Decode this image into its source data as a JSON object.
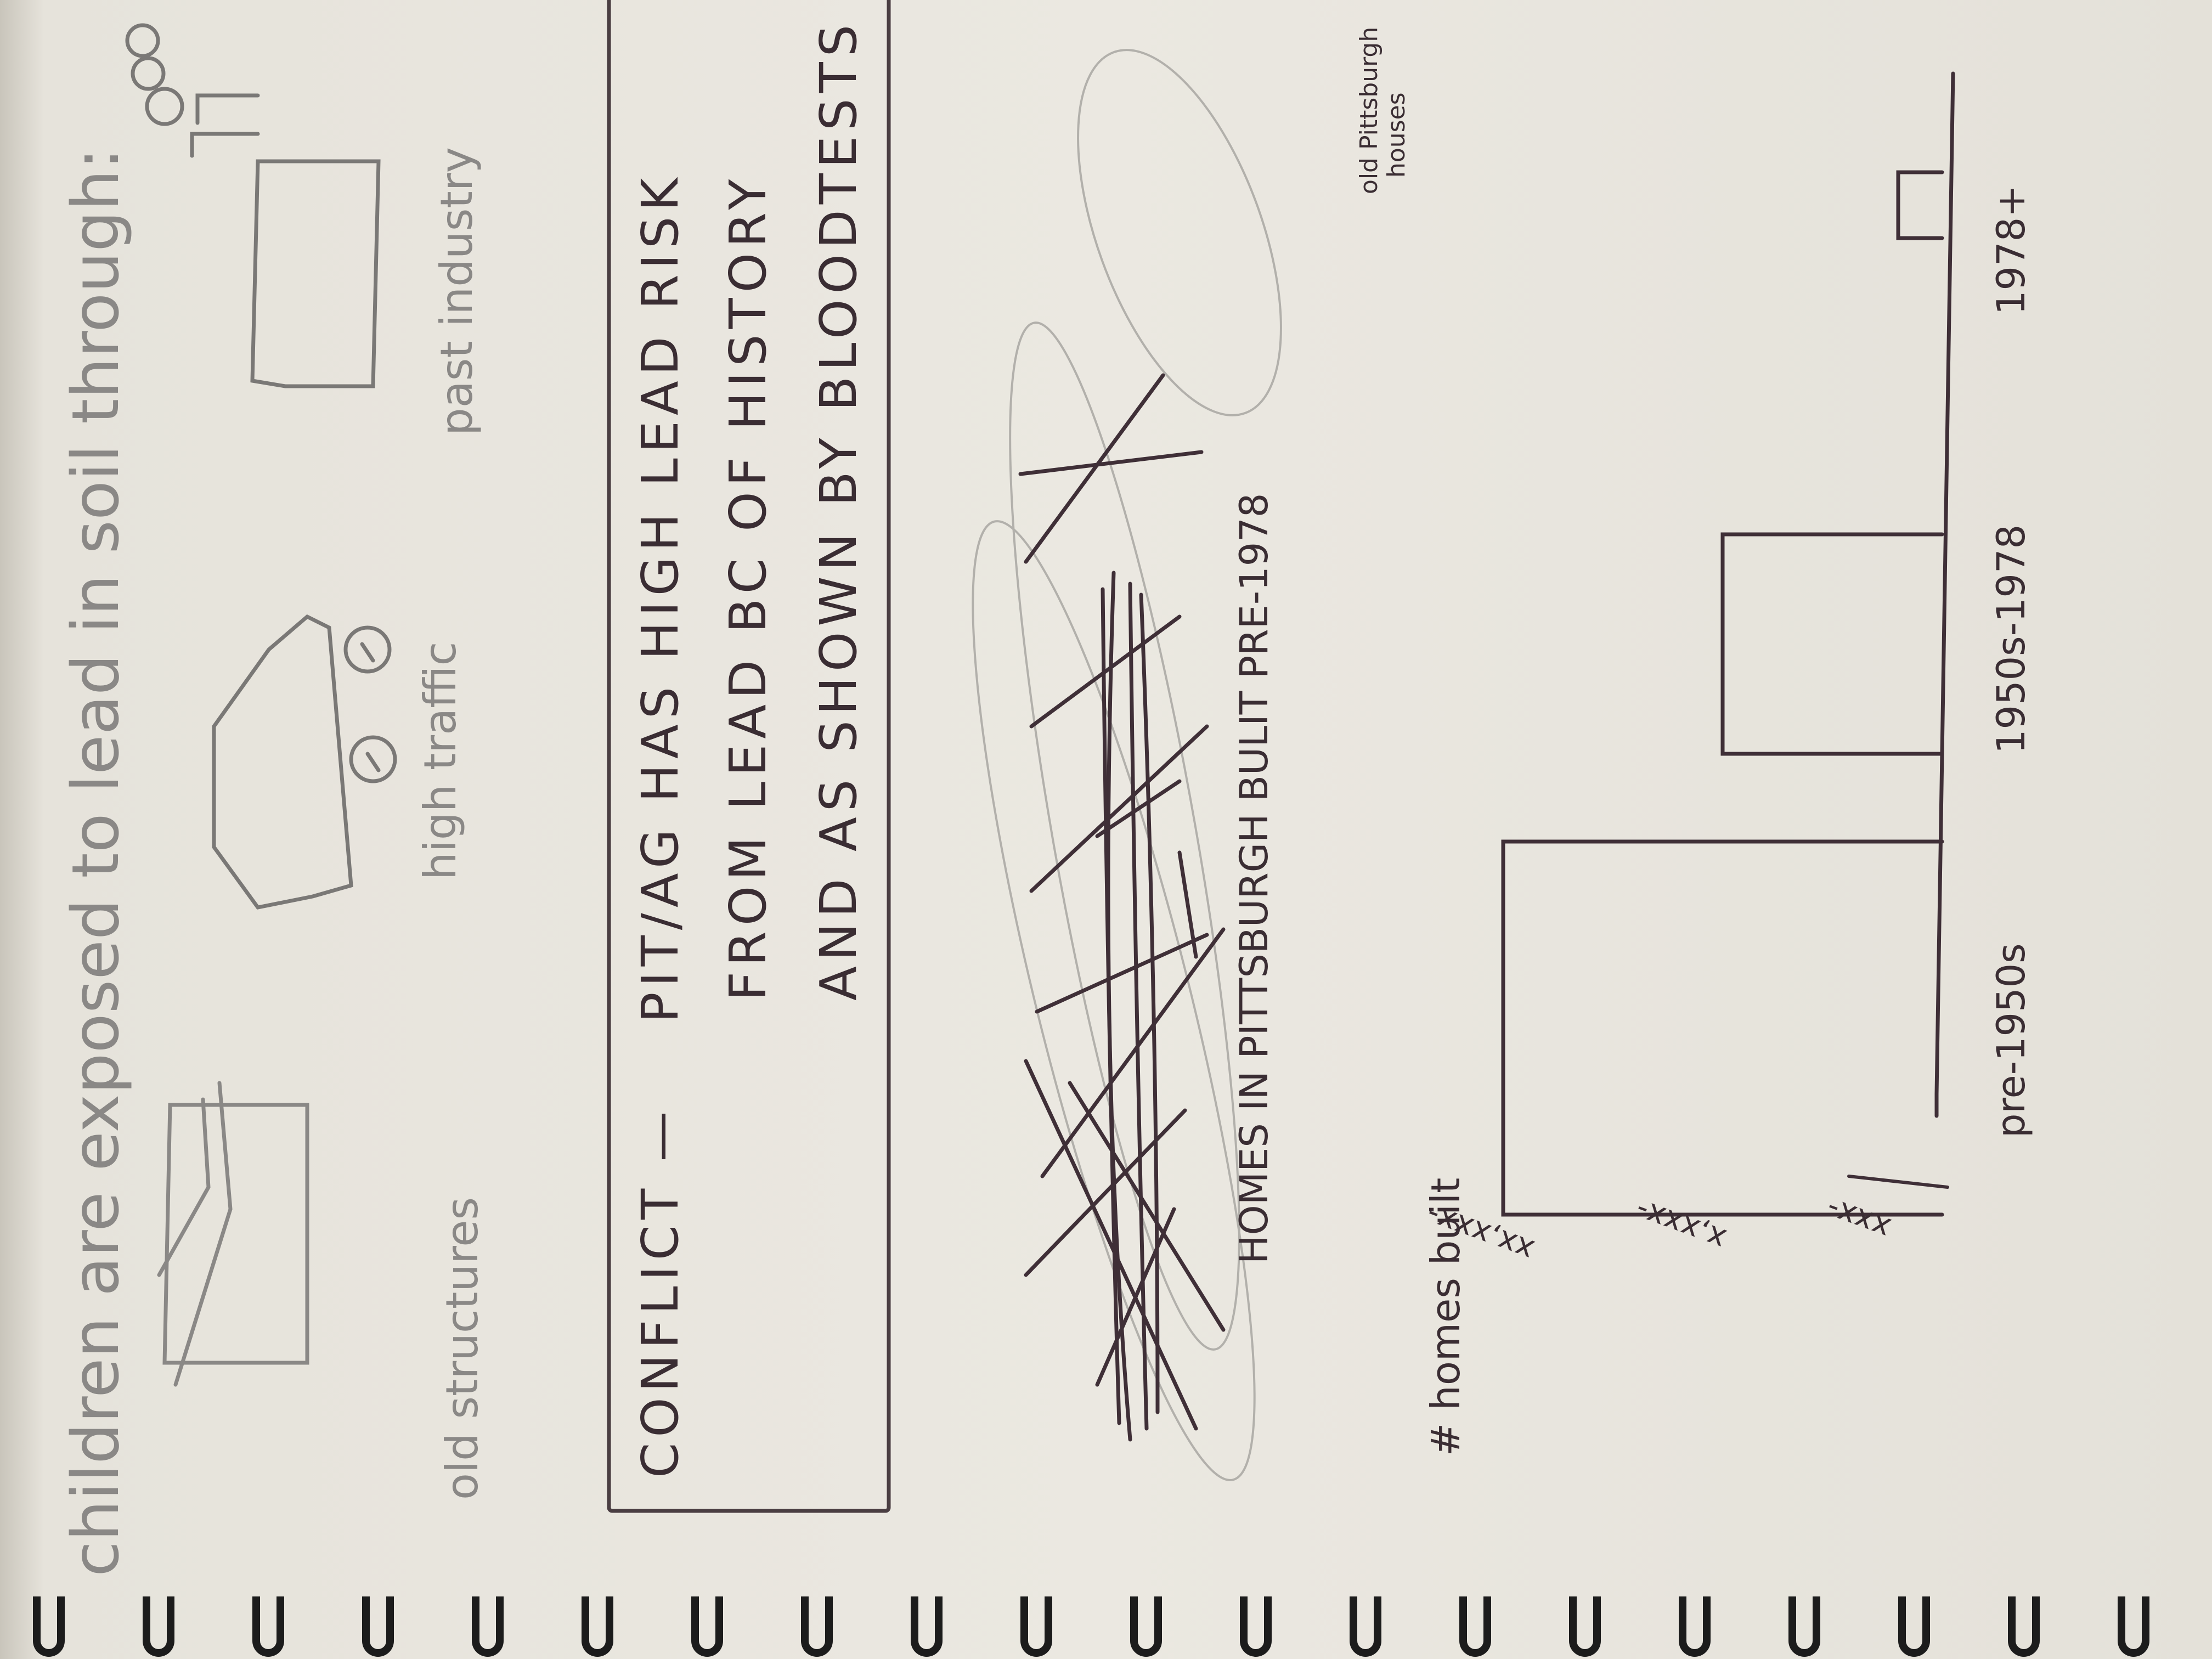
{
  "intro": "children are exposed to lead in soil through:",
  "sources": [
    {
      "label": "old structures"
    },
    {
      "label": "high traffic"
    },
    {
      "label": "past industry"
    }
  ],
  "conflict": {
    "title": "CONFLICT —",
    "line1": "PIT/AG HAS HIGH LEAD RISK",
    "line2": "FROM LEAD BC OF HISTORY",
    "line3": "AND AS SHOWN BY BLOODTESTS"
  },
  "homes_caption": "HOMES IN PITTSBURGH BULIT PRE-1978",
  "side_note": {
    "line1": "old Pittsburgh",
    "line2": "houses"
  },
  "chart_data": {
    "type": "bar",
    "ylabel": "# homes built",
    "yticks": [
      "xx,xxx-",
      "x,xxx-",
      "xxx-"
    ],
    "categories": [
      "pre-1950s",
      "1950s-1978",
      "1978+"
    ],
    "values": [
      1,
      0.5,
      0.1
    ]
  },
  "colors": {
    "paper": "#ebe8e1",
    "pen": "#3a2d33",
    "pencil": "#8a8886",
    "binding": "#1c1c1c"
  }
}
